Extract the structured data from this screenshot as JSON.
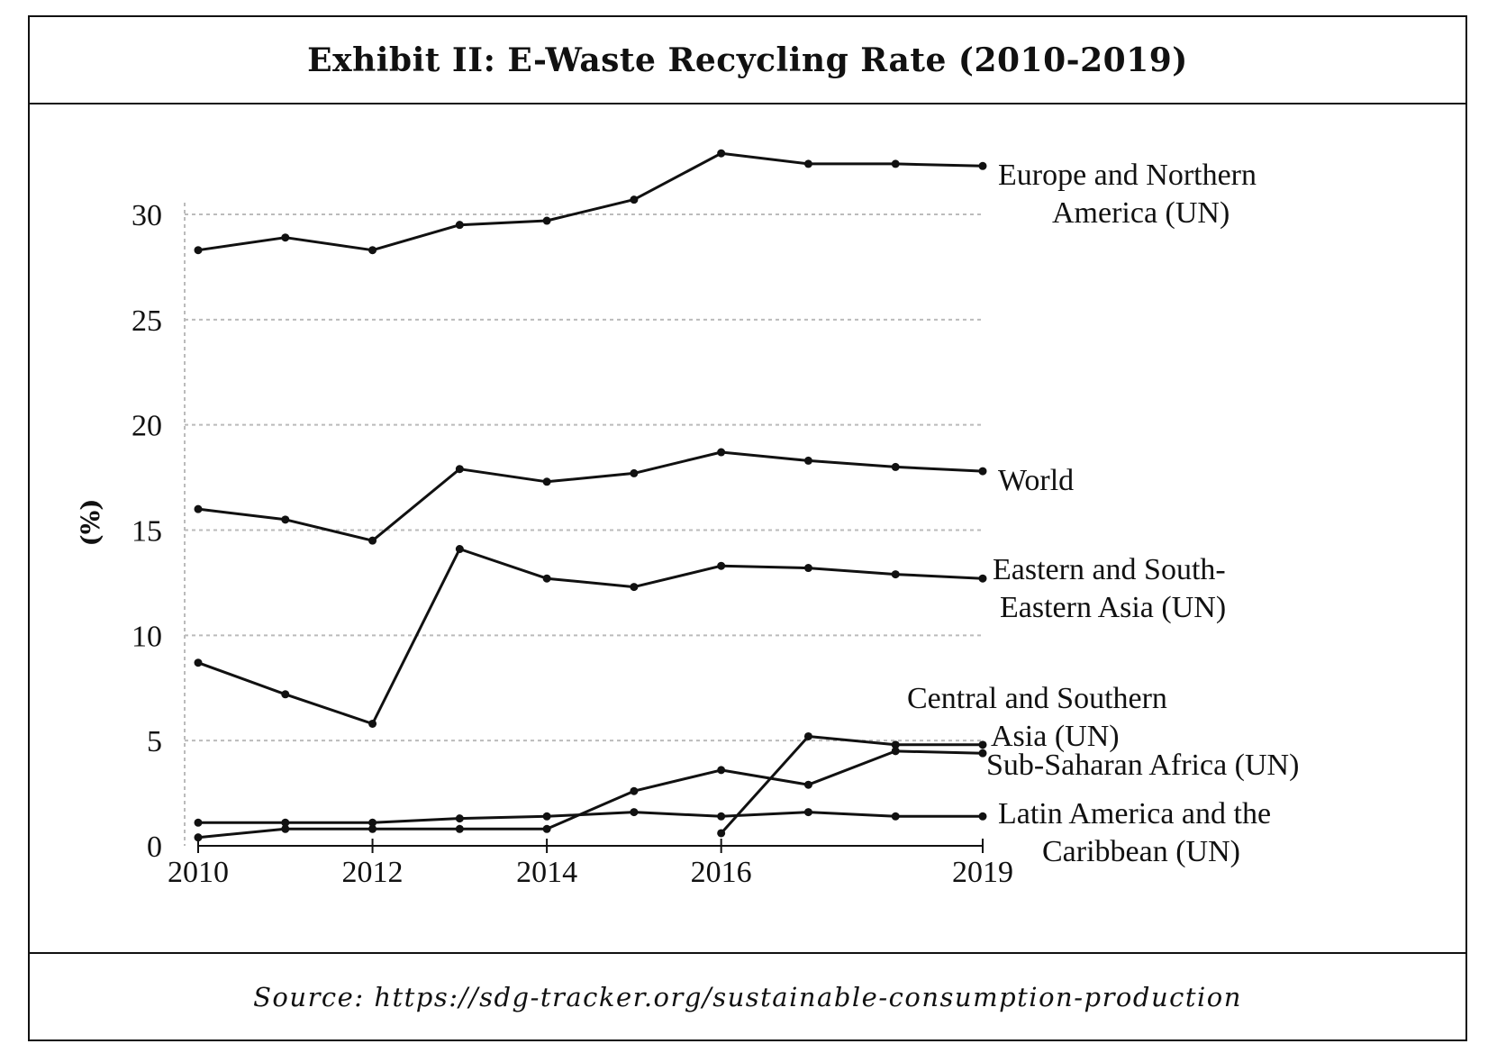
{
  "exhibit": {
    "title": "Exhibit II: E-Waste Recycling Rate (2010-2019)",
    "source": "Source:  https://sdg-tracker.org/sustainable-consumption-production"
  },
  "chart_data": {
    "type": "line",
    "title": "Exhibit II: E-Waste Recycling Rate (2010-2019)",
    "xlabel": "",
    "ylabel": "(%)",
    "xlim": [
      2010,
      2019
    ],
    "ylim": [
      0,
      30
    ],
    "x_ticks": [
      2010,
      2012,
      2014,
      2016,
      2019
    ],
    "y_ticks": [
      0,
      5,
      10,
      15,
      20,
      25,
      30
    ],
    "grid": "horizontal dotted",
    "legend": "none (series labels at right end of lines)",
    "line_color": "#111111",
    "grid_color": "#bbbbbb",
    "series": [
      {
        "name": "Europe and Northern America (UN)",
        "label_lines": [
          "Europe and Northern",
          "America (UN)"
        ],
        "x": [
          2010,
          2011,
          2012,
          2013,
          2014,
          2015,
          2016,
          2017,
          2018,
          2019
        ],
        "y": [
          28.3,
          28.9,
          28.3,
          29.5,
          29.7,
          30.7,
          32.9,
          32.4,
          32.4,
          32.3
        ]
      },
      {
        "name": "World",
        "label_lines": [
          "World"
        ],
        "x": [
          2010,
          2011,
          2012,
          2013,
          2014,
          2015,
          2016,
          2017,
          2018,
          2019
        ],
        "y": [
          16.0,
          15.5,
          14.5,
          17.9,
          17.3,
          17.7,
          18.7,
          18.3,
          18.0,
          17.8
        ]
      },
      {
        "name": "Eastern and South-Eastern Asia (UN)",
        "label_lines": [
          "Eastern and South-",
          "Eastern Asia (UN)"
        ],
        "x": [
          2010,
          2011,
          2012,
          2013,
          2014,
          2015,
          2016,
          2017,
          2018,
          2019
        ],
        "y": [
          8.7,
          7.2,
          5.8,
          14.1,
          12.7,
          12.3,
          13.3,
          13.2,
          12.9,
          12.7
        ]
      },
      {
        "name": "Central and Southern Asia (UN)",
        "label_lines": [
          "Central and Southern",
          "Asia (UN)"
        ],
        "x": [
          2016,
          2017,
          2018,
          2019
        ],
        "y": [
          0.6,
          5.2,
          4.8,
          4.8
        ]
      },
      {
        "name": "Sub-Saharan Africa (UN)",
        "label_lines": [
          "Sub-Saharan Africa (UN)"
        ],
        "x": [
          2010,
          2011,
          2012,
          2013,
          2014,
          2015,
          2016,
          2017,
          2018,
          2019
        ],
        "y": [
          0.4,
          0.8,
          0.8,
          0.8,
          0.8,
          2.6,
          3.6,
          2.9,
          4.5,
          4.4
        ]
      },
      {
        "name": "Latin America and the Caribbean (UN)",
        "label_lines": [
          "Latin America and the",
          "Caribbean (UN)"
        ],
        "x": [
          2010,
          2011,
          2012,
          2013,
          2014,
          2015,
          2016,
          2017,
          2018,
          2019
        ],
        "y": [
          1.1,
          1.1,
          1.1,
          1.3,
          1.4,
          1.6,
          1.4,
          1.6,
          1.4,
          1.4
        ]
      }
    ]
  }
}
